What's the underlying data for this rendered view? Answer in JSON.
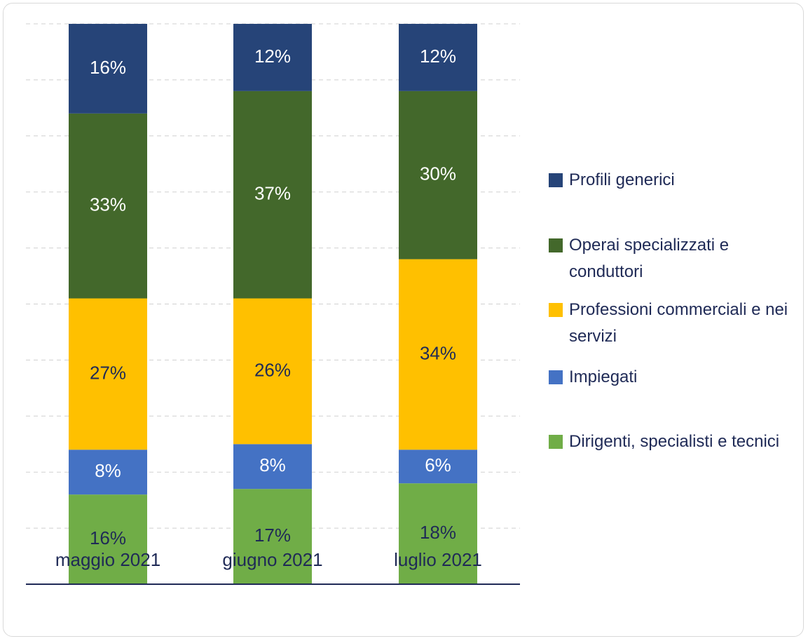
{
  "chart_data": {
    "type": "stacked_bar",
    "categories": [
      "maggio 2021",
      "giugno 2021",
      "luglio 2021"
    ],
    "series": [
      {
        "name": "Dirigenti, specialisti e tecnici",
        "color": "#70ad47",
        "values": [
          16,
          17,
          18
        ],
        "value_labels": [
          "16%",
          "17%",
          "18%"
        ]
      },
      {
        "name": "Impiegati",
        "color": "#4472c4",
        "values": [
          8,
          8,
          6
        ],
        "value_labels": [
          "8%",
          "8%",
          "6%"
        ]
      },
      {
        "name": "Professioni commerciali e nei servizi",
        "color": "#ffc000",
        "values": [
          27,
          26,
          34
        ],
        "value_labels": [
          "27%",
          "26%",
          "34%"
        ]
      },
      {
        "name": "Operai specializzati e conduttori",
        "color": "#43682b",
        "values": [
          33,
          37,
          30
        ],
        "value_labels": [
          "33%",
          "37%",
          "30%"
        ]
      },
      {
        "name": "Profili generici",
        "color": "#264478",
        "values": [
          16,
          12,
          12
        ],
        "value_labels": [
          "16%",
          "12%",
          "12%"
        ]
      }
    ],
    "ylim": [
      0,
      100
    ],
    "yticks": [
      10,
      20,
      30,
      40,
      50,
      60,
      70,
      80,
      90,
      100
    ],
    "grid": true,
    "legend": "right"
  }
}
